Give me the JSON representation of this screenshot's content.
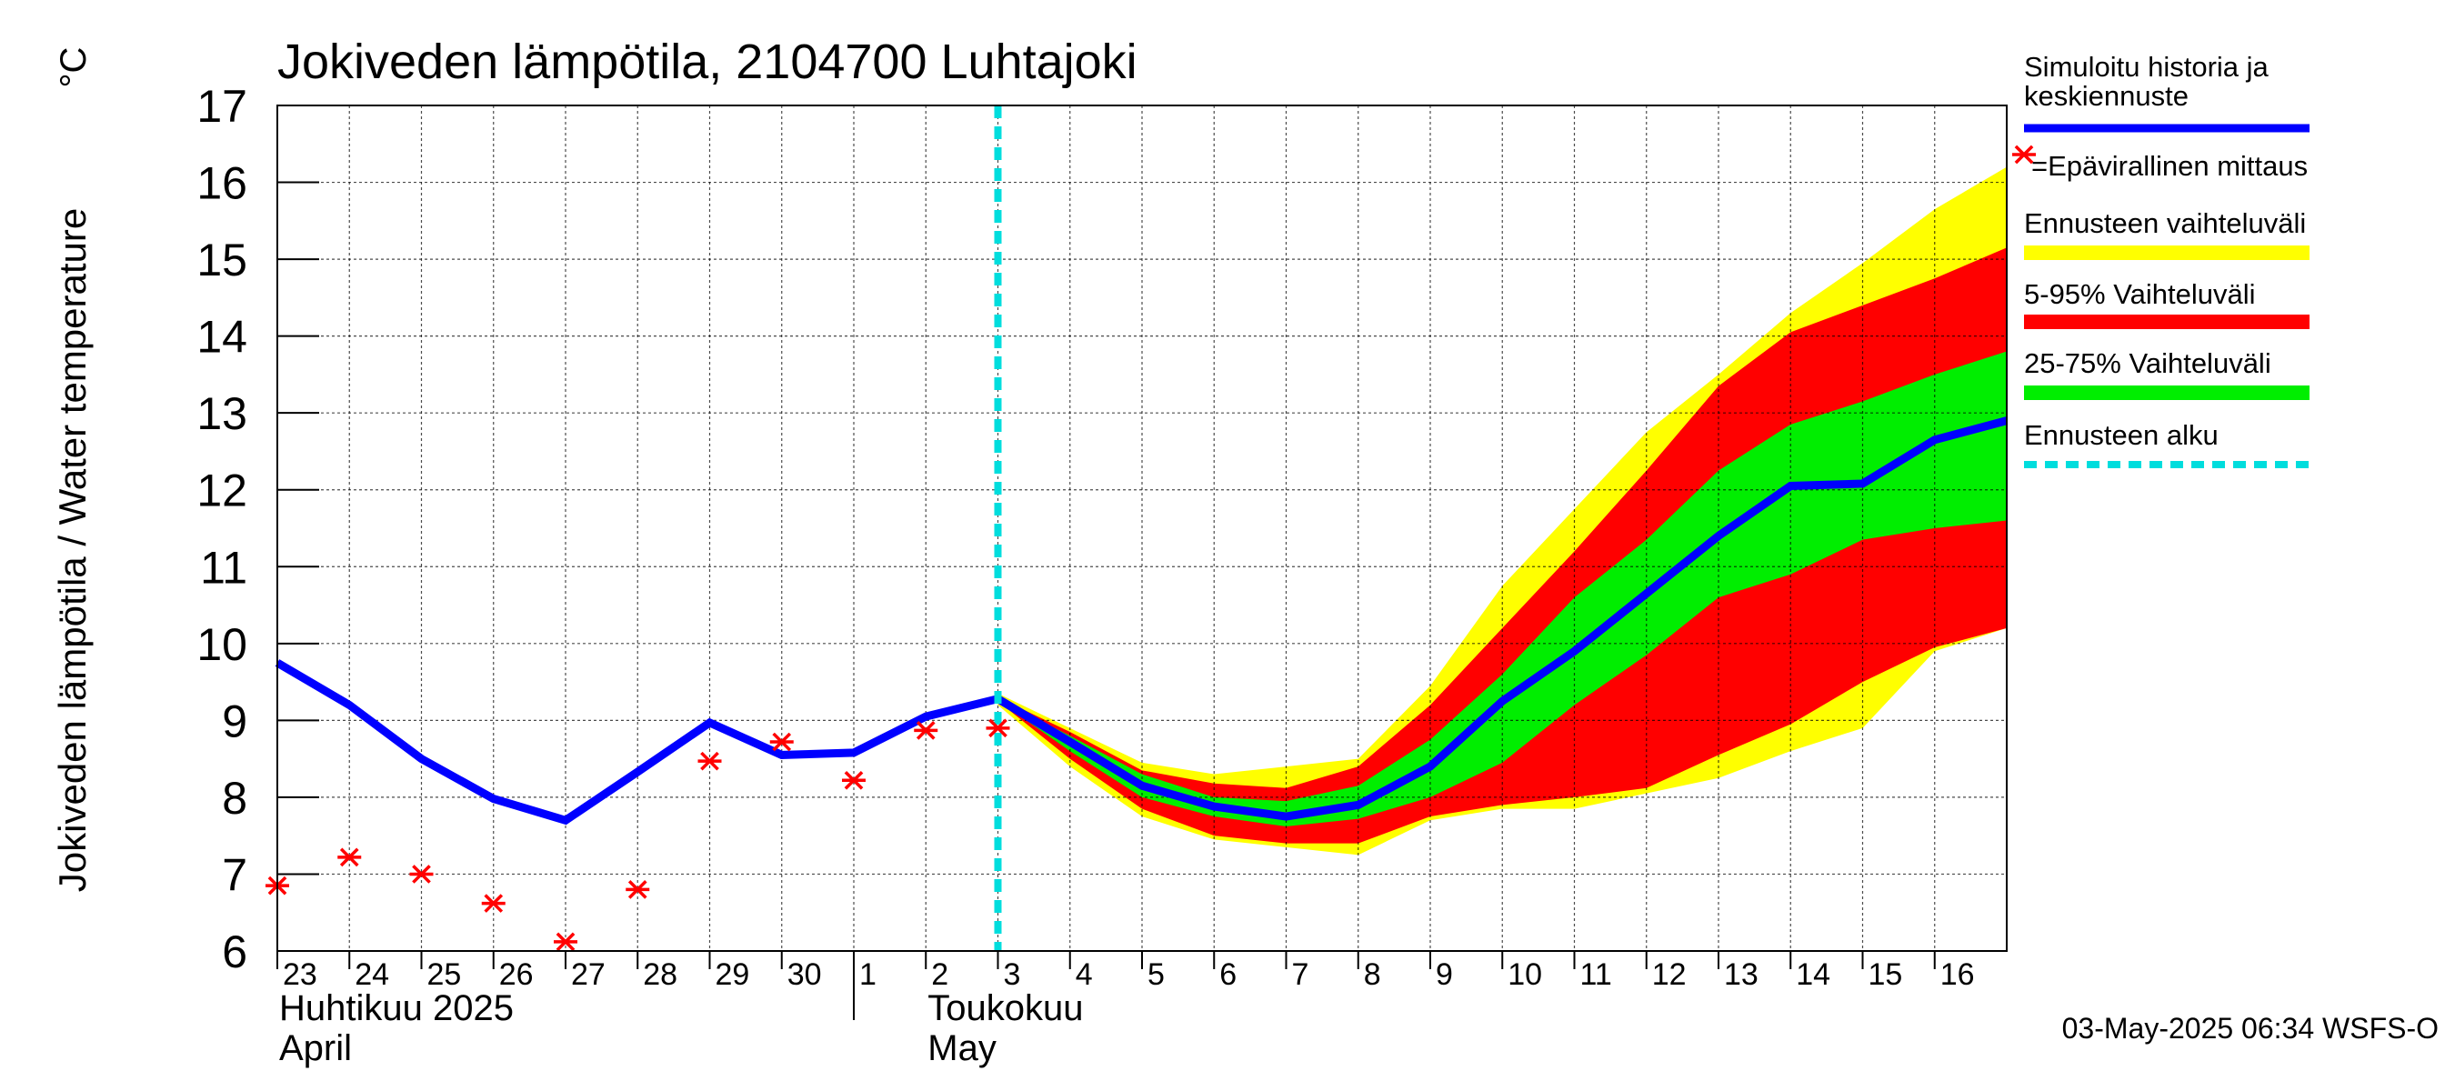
{
  "chart_data": {
    "type": "line",
    "title": "Jokiveden lämpötila, 2104700 Luhtajoki",
    "ylabel": "Jokiveden lämpötila / Water temperature",
    "yunit": "°C",
    "ylim": [
      6,
      17
    ],
    "yticks": [
      6,
      7,
      8,
      9,
      10,
      11,
      12,
      13,
      14,
      15,
      16,
      17
    ],
    "xlim": [
      0,
      24
    ],
    "xticks": [
      {
        "x": 0,
        "label": "23"
      },
      {
        "x": 1,
        "label": "24"
      },
      {
        "x": 2,
        "label": "25"
      },
      {
        "x": 3,
        "label": "26"
      },
      {
        "x": 4,
        "label": "27"
      },
      {
        "x": 5,
        "label": "28"
      },
      {
        "x": 6,
        "label": "29"
      },
      {
        "x": 7,
        "label": "30"
      },
      {
        "x": 8,
        "label": "1"
      },
      {
        "x": 9,
        "label": "2"
      },
      {
        "x": 10,
        "label": "3"
      },
      {
        "x": 11,
        "label": "4"
      },
      {
        "x": 12,
        "label": "5"
      },
      {
        "x": 13,
        "label": "6"
      },
      {
        "x": 14,
        "label": "7"
      },
      {
        "x": 15,
        "label": "8"
      },
      {
        "x": 16,
        "label": "9"
      },
      {
        "x": 17,
        "label": "10"
      },
      {
        "x": 18,
        "label": "11"
      },
      {
        "x": 19,
        "label": "12"
      },
      {
        "x": 20,
        "label": "13"
      },
      {
        "x": 21,
        "label": "14"
      },
      {
        "x": 22,
        "label": "15"
      },
      {
        "x": 23,
        "label": "16"
      }
    ],
    "month_labels": [
      {
        "x": 0,
        "line1": "Huhtikuu  2025",
        "line2": "April"
      },
      {
        "x": 9,
        "line1": "Toukokuu",
        "line2": "May"
      }
    ],
    "month_divider_x": 8,
    "forecast_start_x": 10,
    "grid": true,
    "series": [
      {
        "name": "Simuloitu historia ja keskiennuste",
        "color": "#0000ff",
        "x": [
          0,
          1,
          2,
          3,
          4,
          5,
          6,
          7,
          8,
          9,
          10,
          11,
          12,
          13,
          14,
          15,
          16,
          17,
          18,
          19,
          20,
          21,
          22,
          23,
          24
        ],
        "y": [
          9.75,
          9.2,
          8.5,
          7.98,
          7.7,
          8.33,
          8.97,
          8.55,
          8.58,
          9.05,
          9.28,
          8.72,
          8.15,
          7.88,
          7.75,
          7.9,
          8.4,
          9.25,
          9.9,
          10.65,
          11.4,
          12.05,
          12.08,
          12.65,
          12.9
        ]
      },
      {
        "name": "=Epävirallinen mittaus",
        "color": "#ff0000",
        "marker": "asterisk",
        "x": [
          0,
          1,
          2,
          3,
          4,
          5,
          6,
          7,
          8,
          9,
          10
        ],
        "y": [
          6.85,
          7.22,
          7.0,
          6.62,
          6.12,
          6.8,
          8.47,
          8.72,
          8.22,
          8.87,
          8.9
        ]
      }
    ],
    "bands": [
      {
        "name": "Ennusteen vaihteluväli",
        "color": "#ffff00",
        "x": [
          10,
          11,
          12,
          13,
          14,
          15,
          16,
          17,
          18,
          19,
          20,
          21,
          22,
          23,
          24
        ],
        "upper": [
          9.35,
          8.9,
          8.45,
          8.3,
          8.4,
          8.5,
          9.45,
          10.75,
          11.75,
          12.75,
          13.5,
          14.3,
          14.95,
          15.65,
          16.2
        ],
        "lower": [
          9.2,
          8.4,
          7.75,
          7.45,
          7.35,
          7.25,
          7.7,
          7.85,
          7.85,
          8.05,
          8.25,
          8.6,
          8.9,
          9.9,
          10.2
        ]
      },
      {
        "name": "5-95% Vaihteluväli",
        "color": "#ff0000",
        "x": [
          10,
          11,
          12,
          13,
          14,
          15,
          16,
          17,
          18,
          19,
          20,
          21,
          22,
          23,
          24
        ],
        "upper": [
          9.3,
          8.85,
          8.35,
          8.18,
          8.12,
          8.4,
          9.2,
          10.2,
          11.2,
          12.25,
          13.35,
          14.05,
          14.4,
          14.75,
          15.15
        ],
        "lower": [
          9.25,
          8.5,
          7.85,
          7.5,
          7.4,
          7.4,
          7.75,
          7.9,
          8.0,
          8.12,
          8.55,
          8.95,
          9.5,
          9.95,
          10.2
        ]
      },
      {
        "name": "25-75% Vaihteluväli",
        "color": "#00ee00",
        "x": [
          10,
          11,
          12,
          13,
          14,
          15,
          16,
          17,
          18,
          19,
          20,
          21,
          22,
          23,
          24
        ],
        "upper": [
          9.28,
          8.8,
          8.3,
          8.0,
          7.95,
          8.15,
          8.75,
          9.6,
          10.6,
          11.35,
          12.25,
          12.85,
          13.15,
          13.5,
          13.8
        ],
        "lower": [
          9.26,
          8.6,
          8.0,
          7.75,
          7.62,
          7.72,
          8.0,
          8.45,
          9.2,
          9.85,
          10.6,
          10.9,
          11.35,
          11.5,
          11.6
        ]
      }
    ],
    "legend": {
      "placement": "right",
      "entries": [
        {
          "key": "history",
          "label_lines": [
            "Simuloitu historia ja",
            "keskiennuste"
          ],
          "color": "#0000ff",
          "style": "line"
        },
        {
          "key": "obs",
          "label_lines": [
            "=Epävirallinen mittaus"
          ],
          "color": "#ff0000",
          "style": "asterisk"
        },
        {
          "key": "range",
          "label_lines": [
            "Ennusteen vaihteluväli"
          ],
          "color": "#ffff00",
          "style": "bar"
        },
        {
          "key": "p5_95",
          "label_lines": [
            "5-95% Vaihteluväli"
          ],
          "color": "#ff0000",
          "style": "bar"
        },
        {
          "key": "p25_75",
          "label_lines": [
            "25-75% Vaihteluväli"
          ],
          "color": "#00ee00",
          "style": "bar"
        },
        {
          "key": "start",
          "label_lines": [
            "Ennusteen alku"
          ],
          "color": "#00dddd",
          "style": "dashed"
        }
      ]
    },
    "footer": "03-May-2025 06:34 WSFS-O"
  }
}
